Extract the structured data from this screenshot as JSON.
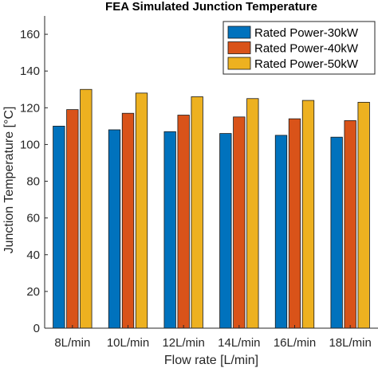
{
  "chart_data": {
    "type": "bar",
    "title": "FEA Simulated Junction Temperature",
    "xlabel": "Flow rate [L/min]",
    "ylabel": "Junction Temperature [°C]",
    "categories": [
      "8L/min",
      "10L/min",
      "12L/min",
      "14L/min",
      "16L/min",
      "18L/min"
    ],
    "series": [
      {
        "name": "Rated Power-30kW",
        "color": "#0072BD",
        "values": [
          110,
          108,
          107,
          106,
          105,
          104
        ]
      },
      {
        "name": "Rated Power-40kW",
        "color": "#D95319",
        "values": [
          119,
          117,
          116,
          115,
          114,
          113
        ]
      },
      {
        "name": "Rated Power-50kW",
        "color": "#EDB120",
        "values": [
          130,
          128,
          126,
          125,
          124,
          123
        ]
      }
    ],
    "ylim": [
      0,
      170
    ],
    "yticks": [
      0,
      20,
      40,
      60,
      80,
      100,
      120,
      140,
      160
    ],
    "grid": false,
    "legend_position": "top-right"
  }
}
